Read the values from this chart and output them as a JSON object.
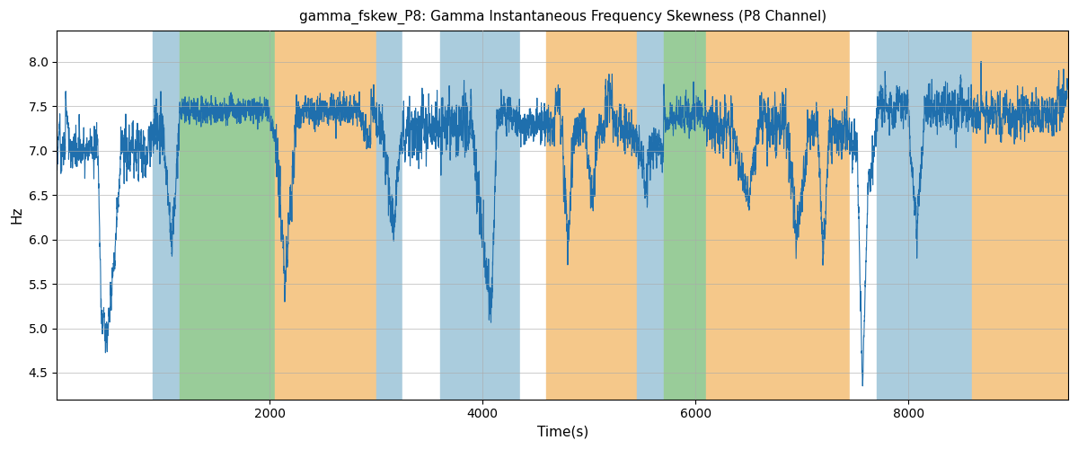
{
  "title": "gamma_fskew_P8: Gamma Instantaneous Frequency Skewness (P8 Channel)",
  "xlabel": "Time(s)",
  "ylabel": "Hz",
  "ylim": [
    4.2,
    8.35
  ],
  "xlim": [
    0,
    9500
  ],
  "bg_regions": [
    {
      "xstart": 0,
      "xend": 900,
      "color": "#ffffff"
    },
    {
      "xstart": 900,
      "xend": 1150,
      "color": "#aaccdd"
    },
    {
      "xstart": 1150,
      "xend": 2050,
      "color": "#99cc99"
    },
    {
      "xstart": 2050,
      "xend": 3000,
      "color": "#f5c88a"
    },
    {
      "xstart": 3000,
      "xend": 3250,
      "color": "#aaccdd"
    },
    {
      "xstart": 3250,
      "xend": 3600,
      "color": "#ffffff"
    },
    {
      "xstart": 3600,
      "xend": 4350,
      "color": "#aaccdd"
    },
    {
      "xstart": 4350,
      "xend": 4600,
      "color": "#ffffff"
    },
    {
      "xstart": 4600,
      "xend": 5450,
      "color": "#f5c88a"
    },
    {
      "xstart": 5450,
      "xend": 5700,
      "color": "#aaccdd"
    },
    {
      "xstart": 5700,
      "xend": 6100,
      "color": "#99cc99"
    },
    {
      "xstart": 6100,
      "xend": 7450,
      "color": "#f5c88a"
    },
    {
      "xstart": 7450,
      "xend": 7700,
      "color": "#ffffff"
    },
    {
      "xstart": 7700,
      "xend": 8600,
      "color": "#aaccdd"
    },
    {
      "xstart": 8600,
      "xend": 9500,
      "color": "#f5c88a"
    }
  ],
  "line_color": "#1f6fad",
  "line_width": 0.8,
  "figsize": [
    12,
    5
  ],
  "dpi": 100
}
